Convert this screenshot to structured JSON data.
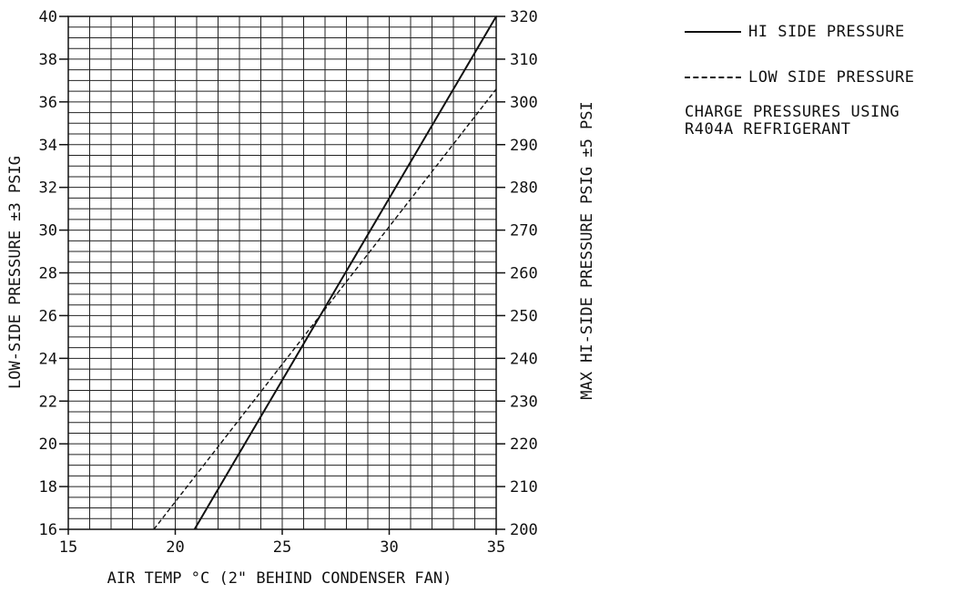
{
  "chart_data": {
    "type": "line",
    "title": "",
    "xlabel": "AIR TEMP °C (2\" BEHIND CONDENSER FAN)",
    "ylabel_left": "LOW-SIDE PRESSURE ±3 PSIG",
    "ylabel_right": "MAX HI-SIDE PRESSURE PSIG ±5 PSI",
    "xlim": [
      15,
      35
    ],
    "ylim_left": [
      16,
      40
    ],
    "ylim_right": [
      200,
      320
    ],
    "x_ticks": [
      "15",
      "20",
      "25",
      "30",
      "35"
    ],
    "y_left_ticks": [
      "16",
      "18",
      "20",
      "22",
      "24",
      "26",
      "28",
      "30",
      "32",
      "34",
      "36",
      "38",
      "40"
    ],
    "y_right_ticks": [
      "200",
      "210",
      "220",
      "230",
      "240",
      "250",
      "260",
      "270",
      "280",
      "290",
      "300",
      "310",
      "320"
    ],
    "grid": true,
    "series": [
      {
        "name": "HI SIDE PRESSURE",
        "axis": "right",
        "style": "solid",
        "x": [
          20.9,
          35
        ],
        "y": [
          200,
          320
        ]
      },
      {
        "name": "LOW SIDE PRESSURE",
        "axis": "left",
        "style": "dashed",
        "x": [
          19,
          35
        ],
        "y": [
          16,
          36.6
        ]
      }
    ],
    "annotation": [
      "CHARGE PRESSURES USING",
      "R404A REFRIGERANT"
    ],
    "legend_position": "top-right"
  },
  "colors": {
    "line": "#111111",
    "grid": "#222222",
    "background": "#ffffff"
  }
}
